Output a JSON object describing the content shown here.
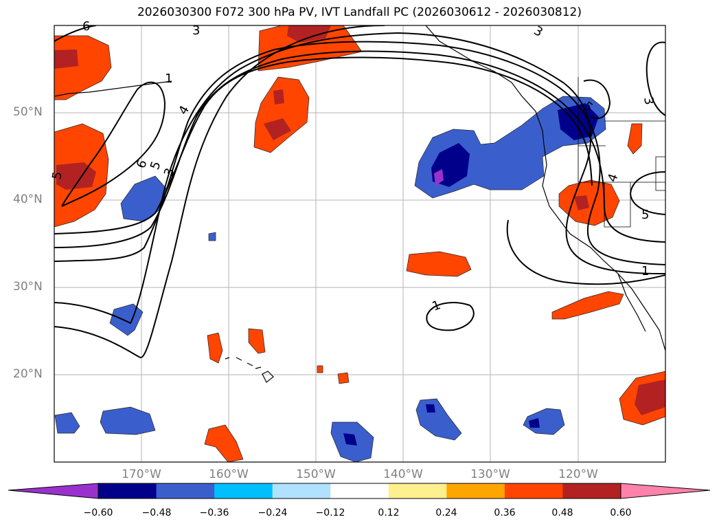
{
  "title": "2026030300 F072 300 hPa PV, IVT Landfall PC (2026030612 - 2026030812)",
  "map": {
    "lat_labels": [
      "50°N",
      "40°N",
      "30°N",
      "20°N"
    ],
    "lon_labels": [
      "170°W",
      "160°W",
      "150°W",
      "140°W",
      "130°W",
      "120°W"
    ],
    "extent": {
      "lon_min": -180,
      "lon_max": -110,
      "lat_min": 10,
      "lat_max": 60
    },
    "contour_labels": [
      "6",
      "5",
      "4",
      "3",
      "3",
      "6",
      "5",
      "3",
      "4",
      "5",
      "1",
      "1",
      "3",
      "1",
      "5"
    ],
    "contour_field": "300 hPa PV",
    "shaded_field": "IVT Landfall PC"
  },
  "colorbar": {
    "ticks": [
      "−0.60",
      "−0.48",
      "−0.36",
      "−0.24",
      "−0.12",
      "0.12",
      "0.24",
      "0.36",
      "0.48",
      "0.60"
    ],
    "colors": [
      "#9932cc",
      "#00008b",
      "#3a5fcd",
      "#00bfff",
      "#b0e2ff",
      "#ffffff",
      "#fff08f",
      "#ffa500",
      "#ff4500",
      "#b22222",
      "#ff82ab"
    ]
  }
}
